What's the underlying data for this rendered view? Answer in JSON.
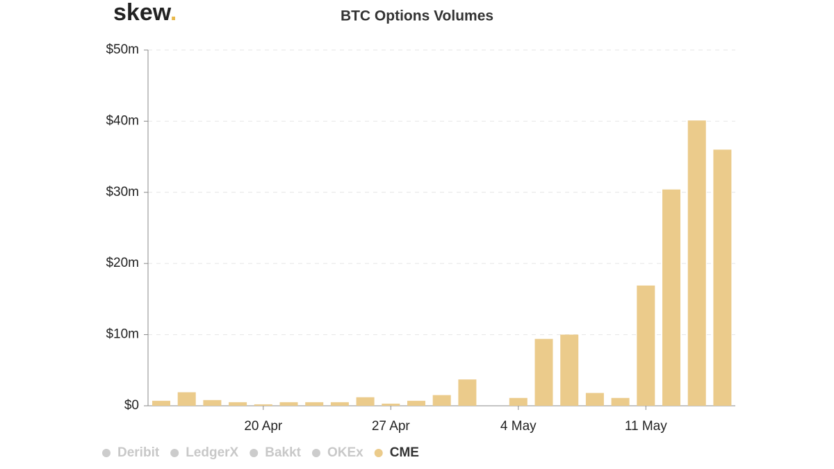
{
  "brand": {
    "name": "skew",
    "dot": "."
  },
  "chart_data": {
    "type": "bar",
    "title": "BTC Options Volumes",
    "categories": [
      null,
      null,
      null,
      null,
      "20 Apr",
      null,
      null,
      null,
      null,
      "27 Apr",
      null,
      null,
      null,
      null,
      "4 May",
      null,
      null,
      null,
      null,
      "11 May",
      null,
      null,
      null
    ],
    "series": [
      {
        "name": "CME",
        "color": "#ebcb8b",
        "values": [
          0.7,
          1.9,
          0.8,
          0.5,
          0.2,
          0.5,
          0.5,
          0.5,
          1.2,
          0.3,
          0.7,
          1.5,
          3.7,
          0,
          1.1,
          9.4,
          10,
          1.8,
          1.1,
          16.9,
          30.4,
          40.1,
          36.0
        ]
      }
    ],
    "hidden_series": [
      {
        "name": "Deribit",
        "color": "#cccccc"
      },
      {
        "name": "LedgerX",
        "color": "#cccccc"
      },
      {
        "name": "Bakkt",
        "color": "#cccccc"
      },
      {
        "name": "OKEx",
        "color": "#cccccc"
      }
    ],
    "ylim": [
      0,
      50
    ],
    "yticks": [
      {
        "value": 0,
        "label": "$0"
      },
      {
        "value": 10,
        "label": "$10m"
      },
      {
        "value": 20,
        "label": "$20m"
      },
      {
        "value": 30,
        "label": "$30m"
      },
      {
        "value": 40,
        "label": "$40m"
      },
      {
        "value": 50,
        "label": "$50m"
      }
    ],
    "grid": true
  }
}
